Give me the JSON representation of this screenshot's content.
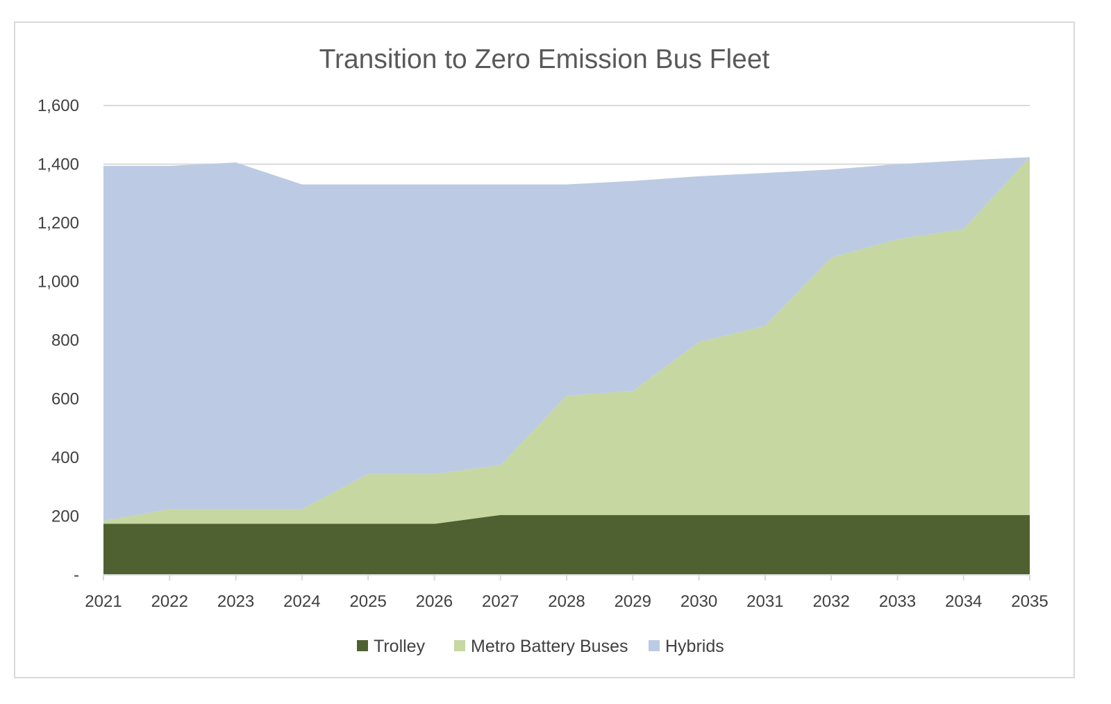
{
  "chart_data": {
    "type": "area",
    "stacked": true,
    "title": "Transition to Zero Emission Bus Fleet",
    "xlabel": "",
    "ylabel": "",
    "categories": [
      "2021",
      "2022",
      "2023",
      "2024",
      "2025",
      "2026",
      "2027",
      "2028",
      "2029",
      "2030",
      "2031",
      "2032",
      "2033",
      "2034",
      "2035"
    ],
    "y_ticks": [
      "-",
      "200",
      "400",
      "600",
      "800",
      "1,000",
      "1,200",
      "1,400",
      "1,600"
    ],
    "ylim": [
      0,
      1600
    ],
    "grid": true,
    "legend": "bottom",
    "series": [
      {
        "name": "Trolley",
        "color": "#4f6130",
        "values": [
          174,
          174,
          174,
          174,
          174,
          174,
          204,
          204,
          204,
          204,
          204,
          204,
          204,
          204,
          204
        ]
      },
      {
        "name": "Metro Battery Buses",
        "color": "#c6d7a1",
        "values": [
          10,
          50,
          50,
          50,
          170,
          170,
          170,
          407,
          423,
          590,
          645,
          878,
          940,
          975,
          1220
        ]
      },
      {
        "name": "Hybrids",
        "color": "#bccbe3",
        "values": [
          1210,
          1170,
          1182,
          1107,
          987,
          987,
          957,
          720,
          716,
          565,
          521,
          300,
          256,
          234,
          0
        ]
      }
    ]
  }
}
